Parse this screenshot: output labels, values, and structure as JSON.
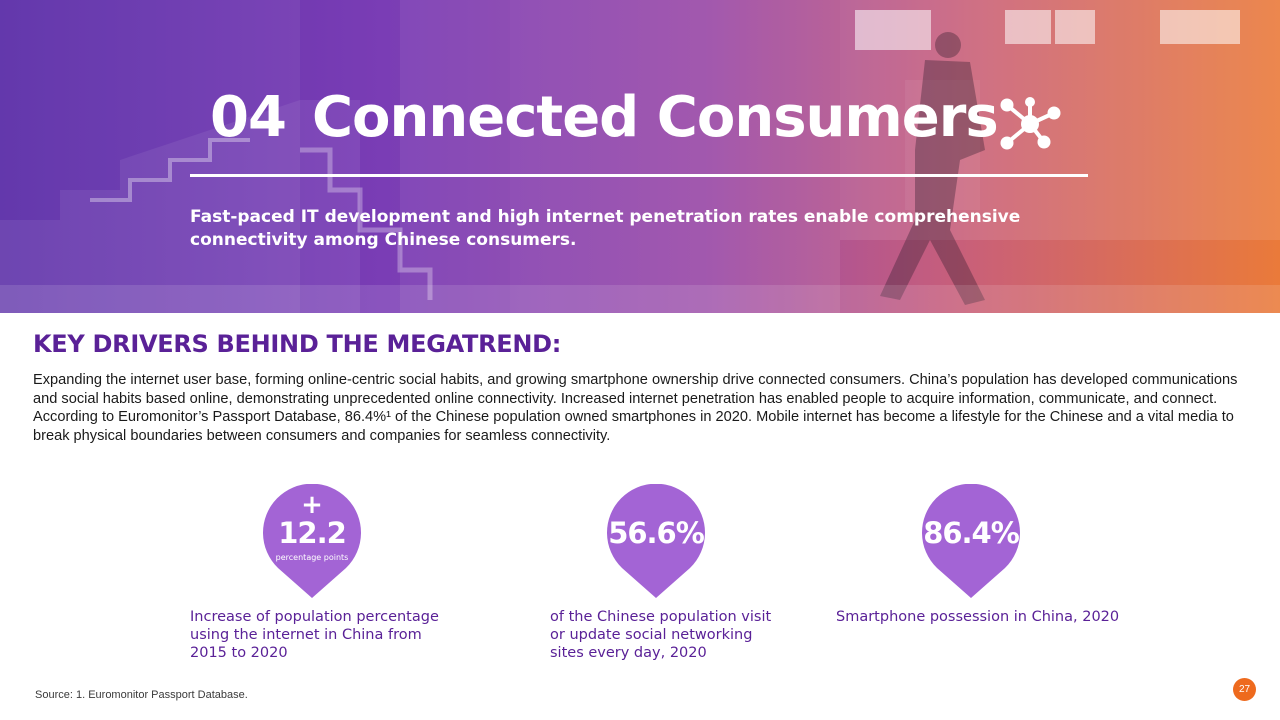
{
  "header": {
    "number": "04",
    "title": "Connected Consumers",
    "icon": "network-icon",
    "subtitle": "Fast-paced IT development and high internet penetration rates enable comprehensive connectivity among Chinese consumers.",
    "gradient": [
      "#5b2ea8",
      "#ea7a3a"
    ]
  },
  "section": {
    "heading": "KEY DRIVERS BEHIND THE MEGATREND:",
    "body": "Expanding the internet user base, forming online-centric social habits, and growing smartphone ownership drive connected consumers. China’s population has developed communications and social habits based online, demonstrating unprecedented online connectivity. Increased internet penetration has enabled people to acquire information, communicate, and connect. According to Euromonitor’s Passport Database, 86.4%¹ of the Chinese population owned smartphones in 2020. Mobile internet has become a lifestyle for the Chinese and a vital media to break physical boundaries between consumers and companies for seamless connectivity."
  },
  "stats": [
    {
      "prefix": "+",
      "value": "12.2",
      "unit": "percentage points",
      "caption": "Increase of population percentage using the internet in China from 2015 to 2020"
    },
    {
      "value": "56.6%",
      "caption": "of the Chinese population visit or update social networking sites every day, 2020"
    },
    {
      "value": "86.4%",
      "caption": "Smartphone possession in China, 2020"
    }
  ],
  "colors": {
    "accent": "#5a2197",
    "pin": "#a364d5",
    "page_badge": "#ee6a1e"
  },
  "footer": {
    "source": "Source: 1. Euromonitor Passport Database.",
    "page": "27"
  }
}
